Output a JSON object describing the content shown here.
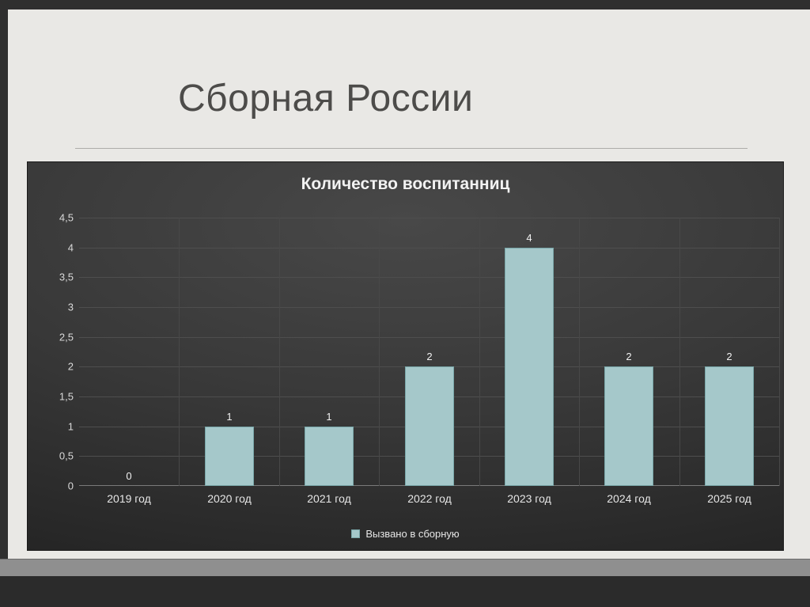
{
  "slide": {
    "title": "Сборная России"
  },
  "chart_data": {
    "type": "bar",
    "title": "Количество воспитанниц",
    "categories": [
      "2019 год",
      "2020 год",
      "2021 год",
      "2022 год",
      "2023 год",
      "2024 год",
      "2025 год"
    ],
    "series": [
      {
        "name": "Вызвано в сборную",
        "values": [
          0,
          1,
          1,
          2,
          4,
          2,
          2
        ]
      }
    ],
    "data_labels": [
      "0",
      "1",
      "1",
      "2",
      "4",
      "2",
      "2"
    ],
    "y_ticks": [
      "4,5",
      "4",
      "3,5",
      "3",
      "2,5",
      "2",
      "1,5",
      "1",
      "0,5",
      "0"
    ],
    "ylim": [
      0,
      4.5
    ],
    "grid": true,
    "legend_position": "bottom",
    "colors": {
      "bar_fill": "#a5c8ca",
      "bar_border": "#79a7a9",
      "chart_text": "#f2f2f2"
    }
  }
}
